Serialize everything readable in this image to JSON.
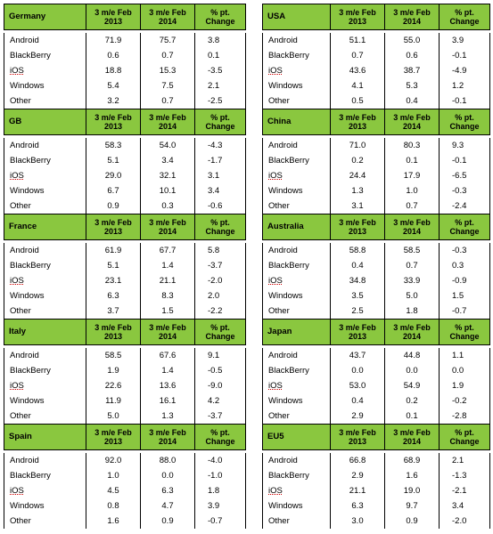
{
  "columns": {
    "p2013": "3 m/e Feb 2013",
    "p2014": "3 m/e Feb 2014",
    "change": "% pt. Change"
  },
  "left": [
    {
      "region": "Germany",
      "rows": [
        {
          "os": "Android",
          "a": "71.9",
          "b": "75.7",
          "c": "3.8"
        },
        {
          "os": "BlackBerry",
          "a": "0.6",
          "b": "0.7",
          "c": "0.1"
        },
        {
          "os": "iOS",
          "a": "18.8",
          "b": "15.3",
          "c": "-3.5"
        },
        {
          "os": "Windows",
          "a": "5.4",
          "b": "7.5",
          "c": "2.1"
        },
        {
          "os": "Other",
          "a": "3.2",
          "b": "0.7",
          "c": "-2.5"
        }
      ]
    },
    {
      "region": "GB",
      "rows": [
        {
          "os": "Android",
          "a": "58.3",
          "b": "54.0",
          "c": "-4.3"
        },
        {
          "os": "BlackBerry",
          "a": "5.1",
          "b": "3.4",
          "c": "-1.7"
        },
        {
          "os": "iOS",
          "a": "29.0",
          "b": "32.1",
          "c": "3.1"
        },
        {
          "os": "Windows",
          "a": "6.7",
          "b": "10.1",
          "c": "3.4"
        },
        {
          "os": "Other",
          "a": "0.9",
          "b": "0.3",
          "c": "-0.6"
        }
      ]
    },
    {
      "region": "France",
      "rows": [
        {
          "os": "Android",
          "a": "61.9",
          "b": "67.7",
          "c": "5.8"
        },
        {
          "os": "BlackBerry",
          "a": "5.1",
          "b": "1.4",
          "c": "-3.7"
        },
        {
          "os": "iOS",
          "a": "23.1",
          "b": "21.1",
          "c": "-2.0"
        },
        {
          "os": "Windows",
          "a": "6.3",
          "b": "8.3",
          "c": "2.0"
        },
        {
          "os": "Other",
          "a": "3.7",
          "b": "1.5",
          "c": "-2.2"
        }
      ]
    },
    {
      "region": "Italy",
      "rows": [
        {
          "os": "Android",
          "a": "58.5",
          "b": "67.6",
          "c": "9.1"
        },
        {
          "os": "BlackBerry",
          "a": "1.9",
          "b": "1.4",
          "c": "-0.5"
        },
        {
          "os": "iOS",
          "a": "22.6",
          "b": "13.6",
          "c": "-9.0"
        },
        {
          "os": "Windows",
          "a": "11.9",
          "b": "16.1",
          "c": "4.2"
        },
        {
          "os": "Other",
          "a": "5.0",
          "b": "1.3",
          "c": "-3.7"
        }
      ]
    },
    {
      "region": "Spain",
      "rows": [
        {
          "os": "Android",
          "a": "92.0",
          "b": "88.0",
          "c": "-4.0"
        },
        {
          "os": "BlackBerry",
          "a": "1.0",
          "b": "0.0",
          "c": "-1.0"
        },
        {
          "os": "iOS",
          "a": "4.5",
          "b": "6.3",
          "c": "1.8"
        },
        {
          "os": "Windows",
          "a": "0.8",
          "b": "4.7",
          "c": "3.9"
        },
        {
          "os": "Other",
          "a": "1.6",
          "b": "0.9",
          "c": "-0.7"
        }
      ]
    }
  ],
  "right": [
    {
      "region": "USA",
      "rows": [
        {
          "os": "Android",
          "a": "51.1",
          "b": "55.0",
          "c": "3.9"
        },
        {
          "os": "BlackBerry",
          "a": "0.7",
          "b": "0.6",
          "c": "-0.1"
        },
        {
          "os": "iOS",
          "a": "43.6",
          "b": "38.7",
          "c": "-4.9"
        },
        {
          "os": "Windows",
          "a": "4.1",
          "b": "5.3",
          "c": "1.2"
        },
        {
          "os": "Other",
          "a": "0.5",
          "b": "0.4",
          "c": "-0.1"
        }
      ]
    },
    {
      "region": "China",
      "rows": [
        {
          "os": "Android",
          "a": "71.0",
          "b": "80.3",
          "c": "9.3"
        },
        {
          "os": "BlackBerry",
          "a": "0.2",
          "b": "0.1",
          "c": "-0.1"
        },
        {
          "os": "iOS",
          "a": "24.4",
          "b": "17.9",
          "c": "-6.5"
        },
        {
          "os": "Windows",
          "a": "1.3",
          "b": "1.0",
          "c": "-0.3"
        },
        {
          "os": "Other",
          "a": "3.1",
          "b": "0.7",
          "c": "-2.4"
        }
      ]
    },
    {
      "region": "Australia",
      "rows": [
        {
          "os": "Android",
          "a": "58.8",
          "b": "58.5",
          "c": "-0.3"
        },
        {
          "os": "BlackBerry",
          "a": "0.4",
          "b": "0.7",
          "c": "0.3"
        },
        {
          "os": "iOS",
          "a": "34.8",
          "b": "33.9",
          "c": "-0.9"
        },
        {
          "os": "Windows",
          "a": "3.5",
          "b": "5.0",
          "c": "1.5"
        },
        {
          "os": "Other",
          "a": "2.5",
          "b": "1.8",
          "c": "-0.7"
        }
      ]
    },
    {
      "region": "Japan",
      "rows": [
        {
          "os": "Android",
          "a": "43.7",
          "b": "44.8",
          "c": "1.1"
        },
        {
          "os": "BlackBerry",
          "a": "0.0",
          "b": "0.0",
          "c": "0.0"
        },
        {
          "os": "iOS",
          "a": "53.0",
          "b": "54.9",
          "c": "1.9"
        },
        {
          "os": "Windows",
          "a": "0.4",
          "b": "0.2",
          "c": "-0.2"
        },
        {
          "os": "Other",
          "a": "2.9",
          "b": "0.1",
          "c": "-2.8"
        }
      ]
    },
    {
      "region": "EU5",
      "rows": [
        {
          "os": "Android",
          "a": "66.8",
          "b": "68.9",
          "c": "2.1"
        },
        {
          "os": "BlackBerry",
          "a": "2.9",
          "b": "1.6",
          "c": "-1.3"
        },
        {
          "os": "iOS",
          "a": "21.1",
          "b": "19.0",
          "c": "-2.1"
        },
        {
          "os": "Windows",
          "a": "6.3",
          "b": "9.7",
          "c": "3.4"
        },
        {
          "os": "Other",
          "a": "3.0",
          "b": "0.9",
          "c": "-2.0"
        }
      ]
    }
  ],
  "colors": {
    "header_bg": "#8ac73f",
    "border": "#000000"
  }
}
